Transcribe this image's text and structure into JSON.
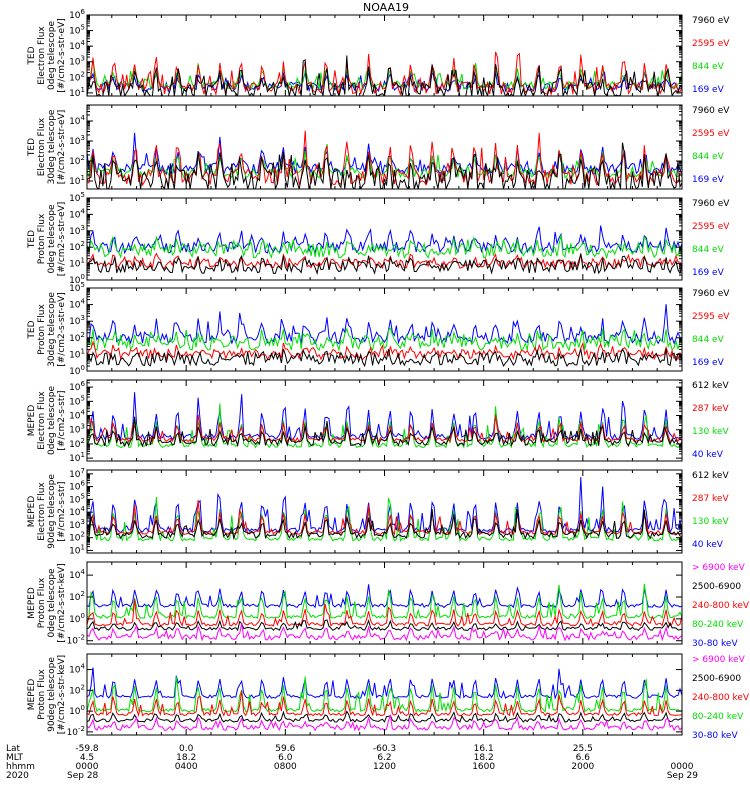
{
  "title": "NOAA19",
  "colors": {
    "black": "#000000",
    "red": "#ff0000",
    "green": "#00e000",
    "blue": "#0000ff",
    "magenta": "#ff00ff"
  },
  "chart_data": [
    {
      "type": "line",
      "ylabel": [
        "TED",
        "Electron Flux",
        "0deg telescope",
        "[#/cm2-s-str-eV]"
      ],
      "y_ticks": [
        {
          "m": "10",
          "e": "1"
        },
        {
          "m": "10",
          "e": "2"
        },
        {
          "m": "10",
          "e": "3"
        },
        {
          "m": "10",
          "e": "4"
        },
        {
          "m": "10",
          "e": "5"
        },
        {
          "m": "10",
          "e": "6"
        }
      ],
      "log_range": [
        0.8,
        6.0
      ],
      "series": [
        {
          "name": "7960 eV",
          "color": "black",
          "base": 1.1,
          "peak": 3.4,
          "noise": 1.2
        },
        {
          "name": "2595 eV",
          "color": "red",
          "base": 1.3,
          "peak": 4.6,
          "noise": 0.8
        },
        {
          "name": "844 eV",
          "color": "green",
          "base": 1.5,
          "peak": 3.3,
          "noise": 0.5
        },
        {
          "name": "169 eV",
          "color": "blue",
          "base": 1.4,
          "peak": 2.6,
          "noise": 0.6
        }
      ]
    },
    {
      "type": "line",
      "ylabel": [
        "TED",
        "Electron Flux",
        "30deg telescope",
        "[#/cm2-s-str-eV]"
      ],
      "y_ticks": [
        {
          "m": "10",
          "e": "1"
        },
        {
          "m": "10",
          "e": "2"
        },
        {
          "m": "10",
          "e": "3"
        },
        {
          "m": "10",
          "e": "4"
        }
      ],
      "log_range": [
        0.6,
        4.8
      ],
      "series": [
        {
          "name": "7960 eV",
          "color": "black",
          "base": 1.0,
          "peak": 3.0,
          "noise": 1.2
        },
        {
          "name": "2595 eV",
          "color": "red",
          "base": 1.2,
          "peak": 3.9,
          "noise": 0.8
        },
        {
          "name": "844 eV",
          "color": "green",
          "base": 1.4,
          "peak": 3.0,
          "noise": 0.5
        },
        {
          "name": "169 eV",
          "color": "blue",
          "base": 1.6,
          "peak": 3.2,
          "noise": 0.6
        }
      ]
    },
    {
      "type": "line",
      "ylabel": [
        "TED",
        "Proton Flux",
        "0deg telescope",
        "[#/cm2-s-str-eV]"
      ],
      "y_ticks": [
        {
          "m": "10",
          "e": "0"
        },
        {
          "m": "10",
          "e": "1"
        },
        {
          "m": "10",
          "e": "2"
        },
        {
          "m": "10",
          "e": "3"
        },
        {
          "m": "10",
          "e": "4"
        },
        {
          "m": "10",
          "e": "5"
        }
      ],
      "log_range": [
        0.0,
        5.0
      ],
      "series": [
        {
          "name": "7960 eV",
          "color": "black",
          "base": 0.8,
          "peak": 1.4,
          "noise": 0.8
        },
        {
          "name": "2595 eV",
          "color": "red",
          "base": 1.0,
          "peak": 1.6,
          "noise": 0.6
        },
        {
          "name": "844 eV",
          "color": "green",
          "base": 1.8,
          "peak": 2.6,
          "noise": 0.9
        },
        {
          "name": "169 eV",
          "color": "blue",
          "base": 2.0,
          "peak": 3.6,
          "noise": 0.7
        }
      ]
    },
    {
      "type": "line",
      "ylabel": [
        "TED",
        "Proton Flux",
        "30deg telescope",
        "[#/cm2-s-str-eV]"
      ],
      "y_ticks": [
        {
          "m": "10",
          "e": "0"
        },
        {
          "m": "10",
          "e": "1"
        },
        {
          "m": "10",
          "e": "2"
        },
        {
          "m": "10",
          "e": "3"
        },
        {
          "m": "10",
          "e": "4"
        },
        {
          "m": "10",
          "e": "5"
        }
      ],
      "log_range": [
        0.0,
        5.0
      ],
      "series": [
        {
          "name": "7960 eV",
          "color": "black",
          "base": 0.7,
          "peak": 1.3,
          "noise": 0.8
        },
        {
          "name": "2595 eV",
          "color": "red",
          "base": 1.0,
          "peak": 1.6,
          "noise": 0.6
        },
        {
          "name": "844 eV",
          "color": "green",
          "base": 1.7,
          "peak": 2.6,
          "noise": 0.9
        },
        {
          "name": "169 eV",
          "color": "blue",
          "base": 2.0,
          "peak": 3.7,
          "noise": 0.7
        }
      ]
    },
    {
      "type": "line",
      "ylabel": [
        "MEPED",
        "Electron Flux",
        "0deg telescope",
        "[#/cm2-s-str]"
      ],
      "y_ticks": [
        {
          "m": "10",
          "e": "1"
        },
        {
          "m": "10",
          "e": "2"
        },
        {
          "m": "10",
          "e": "3"
        },
        {
          "m": "10",
          "e": "4"
        },
        {
          "m": "10",
          "e": "5"
        },
        {
          "m": "10",
          "e": "6"
        }
      ],
      "log_range": [
        0.8,
        6.5
      ],
      "series": [
        {
          "name": "612 keV",
          "color": "black",
          "base": 2.1,
          "peak": 3.8,
          "noise": 0.5
        },
        {
          "name": "287 keV",
          "color": "red",
          "base": 2.3,
          "peak": 4.3,
          "noise": 0.3
        },
        {
          "name": "130 keV",
          "color": "green",
          "base": 1.9,
          "peak": 5.1,
          "noise": 0.3
        },
        {
          "name": "40 keV",
          "color": "blue",
          "base": 2.5,
          "peak": 5.9,
          "noise": 0.4
        }
      ]
    },
    {
      "type": "line",
      "ylabel": [
        "MEPED",
        "Electron Flux",
        "90deg telescope",
        "[#/cm2-s-str]"
      ],
      "y_ticks": [
        {
          "m": "10",
          "e": "1"
        },
        {
          "m": "10",
          "e": "2"
        },
        {
          "m": "10",
          "e": "3"
        },
        {
          "m": "10",
          "e": "4"
        },
        {
          "m": "10",
          "e": "5"
        },
        {
          "m": "10",
          "e": "6"
        },
        {
          "m": "10",
          "e": "7"
        }
      ],
      "log_range": [
        0.8,
        7.3
      ],
      "series": [
        {
          "name": "612 keV",
          "color": "black",
          "base": 2.2,
          "peak": 4.4,
          "noise": 0.5
        },
        {
          "name": "287 keV",
          "color": "red",
          "base": 2.4,
          "peak": 5.1,
          "noise": 0.3
        },
        {
          "name": "130 keV",
          "color": "green",
          "base": 1.9,
          "peak": 6.0,
          "noise": 0.3
        },
        {
          "name": "40 keV",
          "color": "blue",
          "base": 2.6,
          "peak": 6.8,
          "noise": 0.4
        }
      ]
    },
    {
      "type": "line",
      "ylabel": [
        "MEPED",
        "Proton Flux",
        "0deg telescope",
        "[#/cm2-s-str-keV]"
      ],
      "y_ticks": [
        {
          "m": "10",
          "e": "-2"
        },
        {
          "m": "10",
          "e": "0"
        },
        {
          "m": "10",
          "e": "2"
        },
        {
          "m": "10",
          "e": "4"
        }
      ],
      "log_range": [
        -2.3,
        5.2
      ],
      "series": [
        {
          "name": "> 6900 keV",
          "color": "magenta",
          "base": -1.7,
          "peak": -0.2,
          "noise": 0.5
        },
        {
          "name": "2500-6900",
          "color": "black",
          "base": -0.9,
          "peak": 0.2,
          "noise": 0.3
        },
        {
          "name": "240-800 keV",
          "color": "red",
          "base": -0.5,
          "peak": 1.8,
          "noise": 0.3
        },
        {
          "name": "80-240 keV",
          "color": "green",
          "base": 0.2,
          "peak": 3.6,
          "noise": 0.3
        },
        {
          "name": "30-80 keV",
          "color": "blue",
          "base": 1.2,
          "peak": 3.9,
          "noise": 0.3
        }
      ]
    },
    {
      "type": "line",
      "ylabel": [
        "MEPED",
        "Proton Flux",
        "90deg telescope",
        "[#/cm2-s-str-keV]"
      ],
      "y_ticks": [
        {
          "m": "10",
          "e": "-2"
        },
        {
          "m": "10",
          "e": "0"
        },
        {
          "m": "10",
          "e": "2"
        },
        {
          "m": "10",
          "e": "4"
        }
      ],
      "log_range": [
        -2.3,
        5.5
      ],
      "series": [
        {
          "name": "> 6900 keV",
          "color": "magenta",
          "base": -1.6,
          "peak": -0.2,
          "noise": 0.5
        },
        {
          "name": "2500-6900",
          "color": "black",
          "base": -0.9,
          "peak": 0.3,
          "noise": 0.3
        },
        {
          "name": "240-800 keV",
          "color": "red",
          "base": -0.3,
          "peak": 2.2,
          "noise": 0.3
        },
        {
          "name": "80-240 keV",
          "color": "green",
          "base": 0.1,
          "peak": 4.2,
          "noise": 0.3
        },
        {
          "name": "30-80 keV",
          "color": "blue",
          "base": 1.4,
          "peak": 4.6,
          "noise": 0.3
        }
      ]
    }
  ],
  "x_axis": {
    "row_labels": [
      "Lat",
      "MLT",
      "hhmm",
      "2020"
    ],
    "ticks": [
      {
        "lat": "-59.8",
        "mlt": "4.5",
        "hhmm": "0000",
        "date": "Sep 28"
      },
      {
        "lat": "0.0",
        "mlt": "18.2",
        "hhmm": "0400",
        "date": ""
      },
      {
        "lat": "59.6",
        "mlt": "6.0",
        "hhmm": "0800",
        "date": ""
      },
      {
        "lat": "-60.3",
        "mlt": "6.2",
        "hhmm": "1200",
        "date": ""
      },
      {
        "lat": "16.1",
        "mlt": "18.2",
        "hhmm": "1600",
        "date": ""
      },
      {
        "lat": "25.5",
        "mlt": "6.6",
        "hhmm": "2000",
        "date": ""
      },
      {
        "lat": "",
        "mlt": "",
        "hhmm": "0000",
        "date": "Sep 29"
      }
    ]
  }
}
